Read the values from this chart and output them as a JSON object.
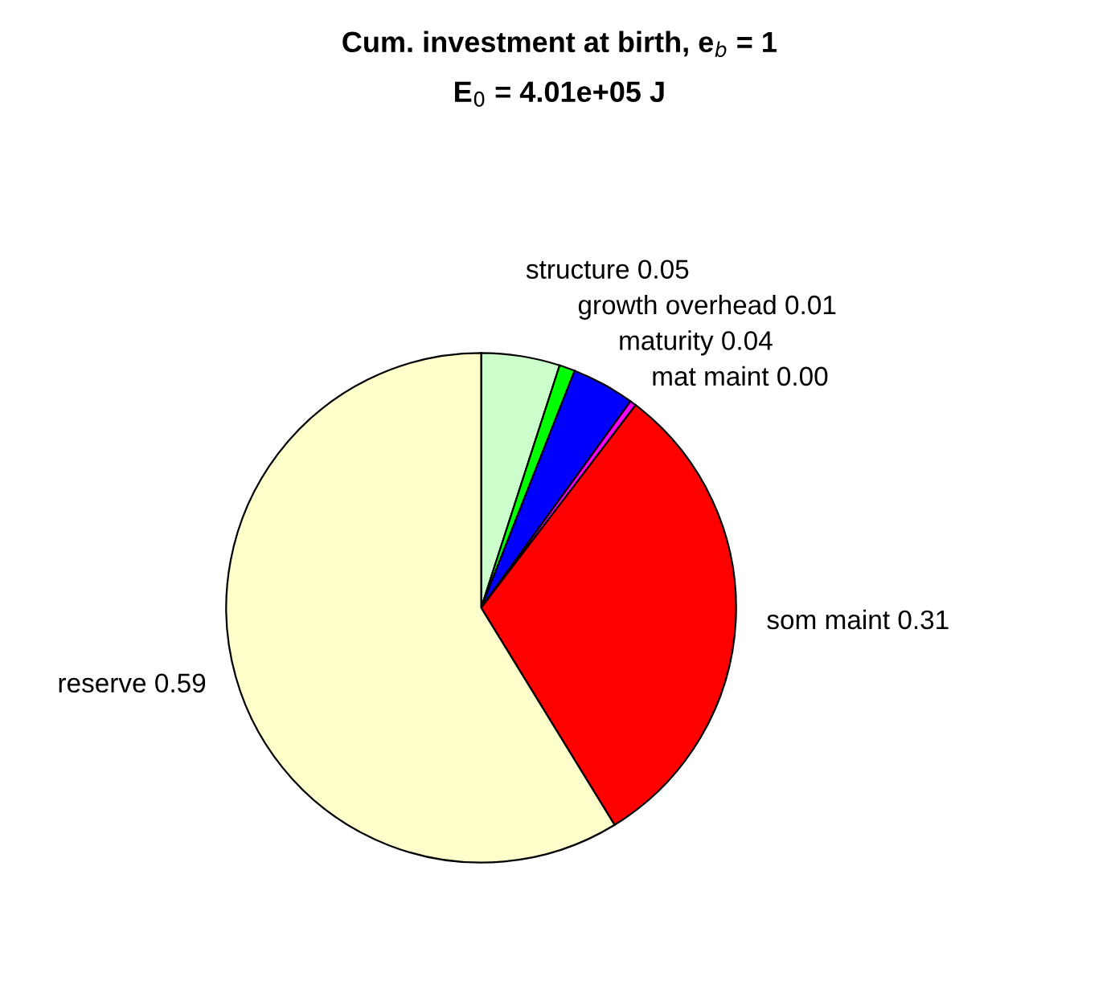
{
  "chart_data": {
    "type": "pie",
    "title": "Cum. investment at birth, e$_{b}$ = 1",
    "subtitle": "E$_{0}$ = 4.01e+05 J",
    "categories": [
      "structure",
      "growth overhead",
      "maturity",
      "mat maint",
      "som maint",
      "reserve"
    ],
    "values": [
      0.05,
      0.01,
      0.04,
      0.004,
      0.31,
      0.59
    ],
    "value_labels": [
      "0.05",
      "0.01",
      "0.04",
      "0.00",
      "0.31",
      "0.59"
    ],
    "colors": [
      "#ccffcc",
      "#00ff00",
      "#0000ff",
      "#ff00ff",
      "#ff0000",
      "#ffffcc"
    ]
  }
}
